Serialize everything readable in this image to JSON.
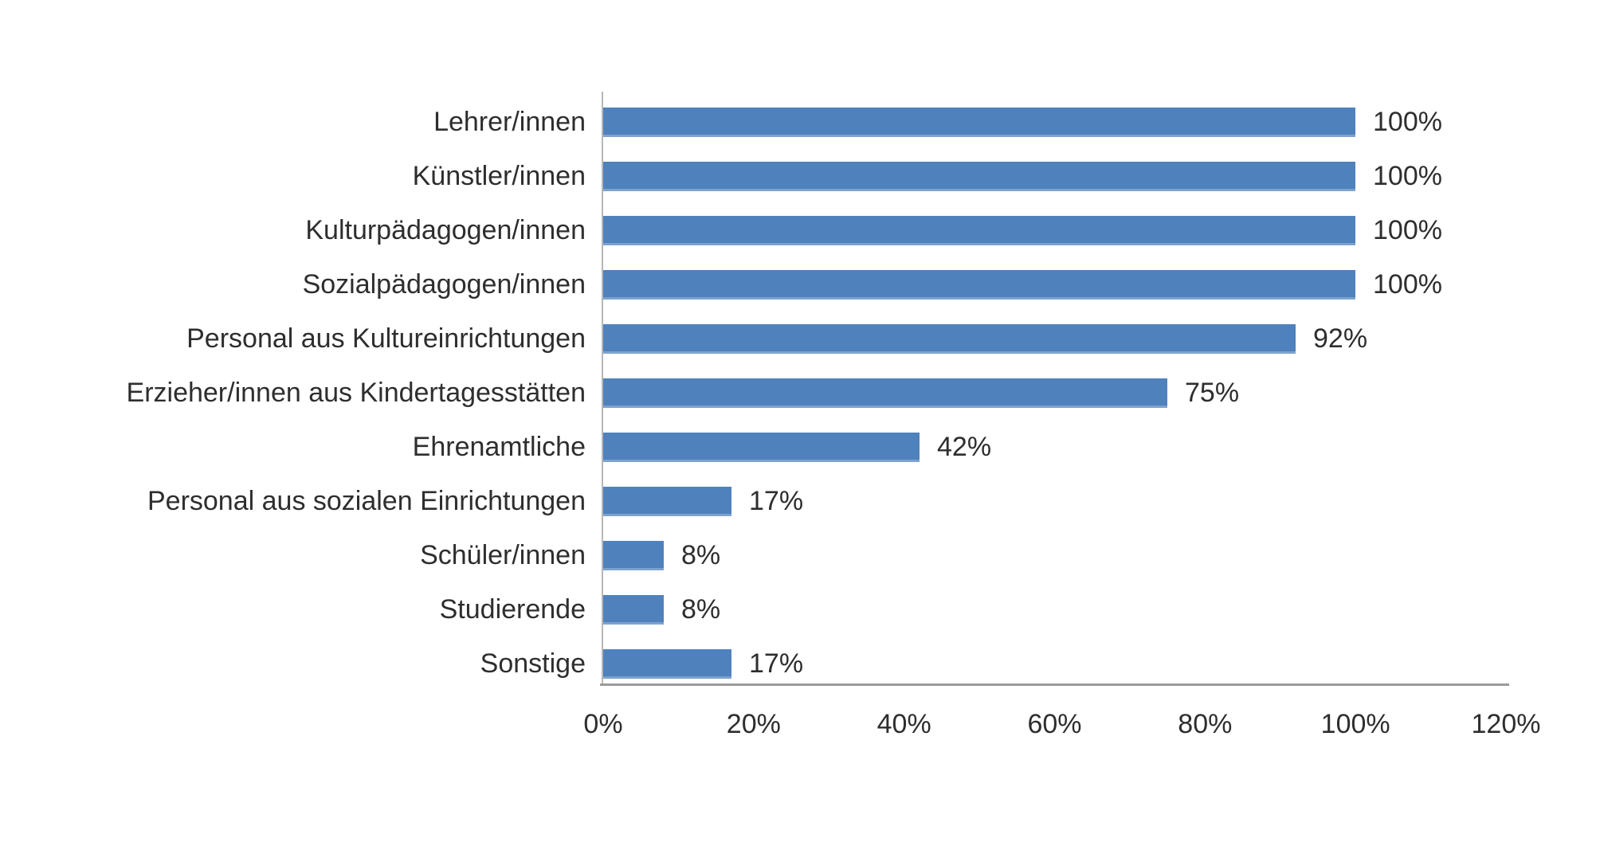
{
  "chart_data": {
    "type": "bar",
    "orientation": "horizontal",
    "title": "",
    "xlabel": "",
    "ylabel": "",
    "categories": [
      "Lehrer/innen",
      "Künstler/innen",
      "Kulturpädagogen/innen",
      "Sozialpädagogen/innen",
      "Personal aus Kultureinrichtungen",
      "Erzieher/innen aus Kindertagesstätten",
      "Ehrenamtliche",
      "Personal aus sozialen Einrichtungen",
      "Schüler/innen",
      "Studierende",
      "Sonstige"
    ],
    "values": [
      100,
      100,
      100,
      100,
      92,
      75,
      42,
      17,
      8,
      8,
      17
    ],
    "value_labels": [
      "100%",
      "100%",
      "100%",
      "100%",
      "92%",
      "75%",
      "42%",
      "17%",
      "8%",
      "8%",
      "17%"
    ],
    "xlim": [
      0,
      120
    ],
    "x_tick_values": [
      0,
      20,
      40,
      60,
      80,
      100,
      120
    ],
    "x_tick_labels": [
      "0%",
      "20%",
      "40%",
      "60%",
      "80%",
      "100%",
      "120%"
    ],
    "grid": false,
    "legend": "none",
    "bar_color": "#4f81bd",
    "axis_color": "#9b9b9b",
    "text_color": "#2e2e2e",
    "background_color": "#ffffff"
  }
}
